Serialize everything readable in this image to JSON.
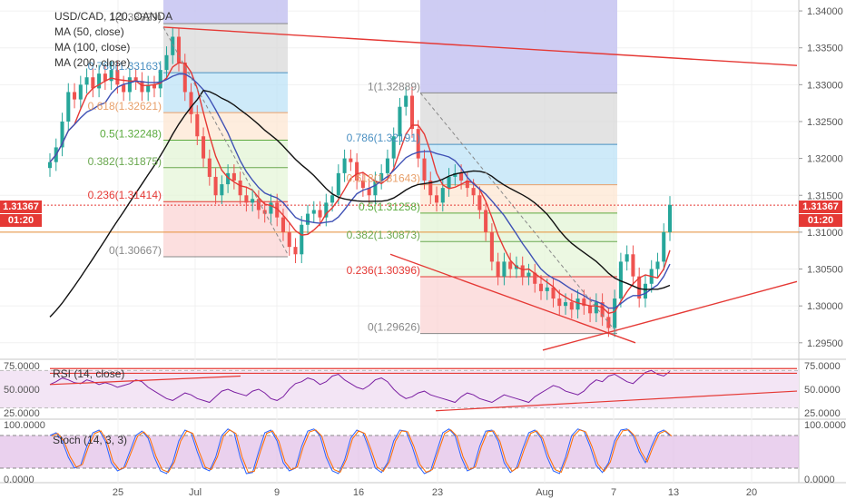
{
  "legend": {
    "symbol": "USD/CAD, 120, OANDA",
    "ma50": "MA (50, close)",
    "ma100": "MA (100, close)",
    "ma200": "MA (200, close)"
  },
  "rsi_label": "RSI (14, close)",
  "stoch_label": "Stoch (14, 3, 3)",
  "current_price": "1.31367",
  "countdown": "01:20",
  "colors": {
    "up": "#26a69a",
    "down": "#ef5350",
    "ma50": "#e53935",
    "ma100": "#3f51b5",
    "ma200": "#111111",
    "trendline": "#e53935",
    "rsi": "#7b1fa2",
    "fib_tag": "#e53935"
  },
  "chart_data": {
    "type": "candlestick",
    "title": "USD/CAD, 120, OANDA",
    "price_axis_ticks": [
      "1.34000",
      "1.33500",
      "1.33000",
      "1.32500",
      "1.32000",
      "1.31500",
      "1.31000",
      "1.30500",
      "1.30000",
      "1.29500"
    ],
    "time_axis_ticks": [
      "25",
      "Jul",
      "9",
      "16",
      "23",
      "Aug",
      "7",
      "13",
      "20"
    ],
    "price_range": [
      1.2935,
      1.3405
    ],
    "fib_left": {
      "levels": [
        {
          "ratio": "1",
          "price": "1.33829",
          "label": "1(1.33829)"
        },
        {
          "ratio": "0.786",
          "price": "1.33163",
          "label": "0.786(1.33163)"
        },
        {
          "ratio": "0.618",
          "price": "1.32621",
          "label": "0.618(1.32621)"
        },
        {
          "ratio": "0.5",
          "price": "1.32248",
          "label": "0.5(1.32248)"
        },
        {
          "ratio": "0.382",
          "price": "1.31875",
          "label": "0.382(1.31875)"
        },
        {
          "ratio": "0.236",
          "price": "1.31414",
          "label": "0.236(1.31414)"
        },
        {
          "ratio": "0",
          "price": "1.30667",
          "label": "0(1.30667)"
        }
      ]
    },
    "fib_right": {
      "levels": [
        {
          "ratio": "1",
          "price": "1.32889",
          "label": "1(1.32889)"
        },
        {
          "ratio": "0.786",
          "price": "1.32191",
          "label": "0.786(1.32191)"
        },
        {
          "ratio": "0.618",
          "price": "1.31643",
          "label": "0.618(1.31643)"
        },
        {
          "ratio": "0.5",
          "price": "1.31258",
          "label": "0.5(1.31258)"
        },
        {
          "ratio": "0.382",
          "price": "1.30873",
          "label": "0.382(1.30873)"
        },
        {
          "ratio": "0.236",
          "price": "1.30396",
          "label": "0.236(1.30396)"
        },
        {
          "ratio": "0",
          "price": "1.29626",
          "label": "0(1.29626)"
        }
      ]
    },
    "horizontal_level": 1.31,
    "rsi_axis_ticks": [
      "75.0000",
      "50.0000",
      "25.0000"
    ],
    "stoch_axis_ticks": [
      "100.0000",
      "0.0000"
    ],
    "closes": [
      1.3195,
      1.3215,
      1.325,
      1.329,
      1.328,
      1.33,
      1.331,
      1.3295,
      1.3315,
      1.3305,
      1.332,
      1.33,
      1.329,
      1.331,
      1.3305,
      1.329,
      1.33,
      1.3295,
      1.332,
      1.334,
      1.3365,
      1.333,
      1.329,
      1.326,
      1.323,
      1.32,
      1.3175,
      1.315,
      1.3165,
      1.318,
      1.317,
      1.315,
      1.314,
      1.3145,
      1.313,
      1.3125,
      1.314,
      1.312,
      1.31,
      1.308,
      1.307,
      1.311,
      1.3125,
      1.313,
      1.312,
      1.314,
      1.315,
      1.318,
      1.32,
      1.3195,
      1.317,
      1.316,
      1.315,
      1.317,
      1.318,
      1.32,
      1.323,
      1.327,
      1.3285,
      1.324,
      1.32,
      1.317,
      1.315,
      1.314,
      1.316,
      1.3175,
      1.318,
      1.317,
      1.316,
      1.315,
      1.313,
      1.31,
      1.306,
      1.304,
      1.306,
      1.305,
      1.3055,
      1.304,
      1.3045,
      1.303,
      1.302,
      1.3025,
      1.301,
      1.3,
      1.3005,
      1.2995,
      1.301,
      1.3,
      1.299,
      1.3005,
      1.2985,
      1.297,
      1.301,
      1.306,
      1.307,
      1.304,
      1.301,
      1.303,
      1.305,
      1.306,
      1.31,
      1.3137
    ],
    "rsi_values": [
      55,
      58,
      62,
      60,
      57,
      56,
      60,
      58,
      55,
      57,
      55,
      52,
      54,
      56,
      60,
      58,
      52,
      48,
      44,
      40,
      38,
      42,
      46,
      44,
      40,
      38,
      36,
      42,
      48,
      50,
      47,
      45,
      43,
      48,
      50,
      46,
      40,
      38,
      42,
      50,
      56,
      58,
      62,
      60,
      55,
      58,
      64,
      66,
      60,
      56,
      52,
      50,
      54,
      60,
      62,
      58,
      50,
      44,
      40,
      42,
      46,
      48,
      44,
      42,
      40,
      38,
      36,
      42,
      46,
      44,
      40,
      38,
      36,
      40,
      44,
      42,
      40,
      38,
      36,
      42,
      46,
      50,
      54,
      52,
      48,
      46,
      44,
      48,
      55,
      60,
      58,
      64,
      66,
      62,
      58,
      56,
      62,
      68,
      70,
      66,
      64,
      69
    ],
    "stoch_values": [
      80,
      85,
      70,
      40,
      20,
      25,
      60,
      85,
      90,
      70,
      30,
      15,
      20,
      50,
      80,
      88,
      75,
      40,
      15,
      10,
      30,
      70,
      90,
      85,
      50,
      20,
      15,
      40,
      80,
      92,
      85,
      40,
      10,
      12,
      50,
      85,
      90,
      70,
      30,
      15,
      20,
      60,
      88,
      92,
      80,
      40,
      15,
      10,
      35,
      75,
      90,
      85,
      55,
      20,
      12,
      30,
      70,
      90,
      88,
      60,
      25,
      10,
      15,
      50,
      85,
      92,
      80,
      40,
      15,
      20,
      60,
      88,
      90,
      70,
      30,
      12,
      20,
      55,
      85,
      90,
      75,
      40,
      15,
      10,
      40,
      80,
      92,
      88,
      60,
      25,
      12,
      30,
      70,
      90,
      92,
      80,
      50,
      30,
      60,
      85,
      90,
      80
    ]
  }
}
